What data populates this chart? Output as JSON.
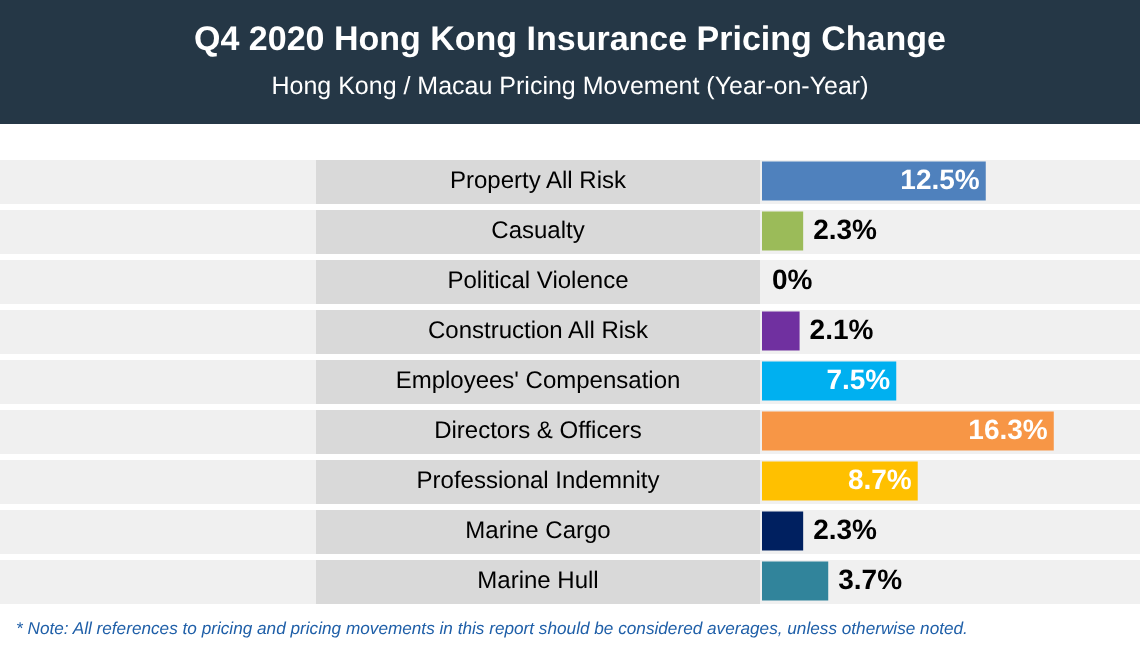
{
  "chart_data": {
    "type": "bar",
    "orientation": "horizontal",
    "title": "Q4 2020 Hong Kong Insurance Pricing Change",
    "subtitle": "Hong Kong / Macau Pricing Movement (Year-on-Year)",
    "categories": [
      "Property All Risk",
      "Casualty",
      "Political Violence",
      "Construction All Risk",
      "Employees' Compensation",
      "Directors & Officers",
      "Professional Indemnity",
      "Marine Cargo",
      "Marine Hull"
    ],
    "values": [
      12.5,
      2.3,
      0,
      2.1,
      7.5,
      16.3,
      8.7,
      2.3,
      3.7
    ],
    "colors": [
      "#4f81bd",
      "#9bbb59",
      "#d9d9d9",
      "#7030a0",
      "#00b0f0",
      "#f79646",
      "#ffc000",
      "#002060",
      "#31849b"
    ],
    "value_labels": [
      "12.5%",
      "2.3%",
      "0%",
      "2.1%",
      "7.5%",
      "16.3%",
      "8.7%",
      "2.3%",
      "3.7%"
    ],
    "annotations": [
      "* Note: All references to pricing and pricing movements in this report should be considered averages, unless otherwise noted."
    ]
  }
}
